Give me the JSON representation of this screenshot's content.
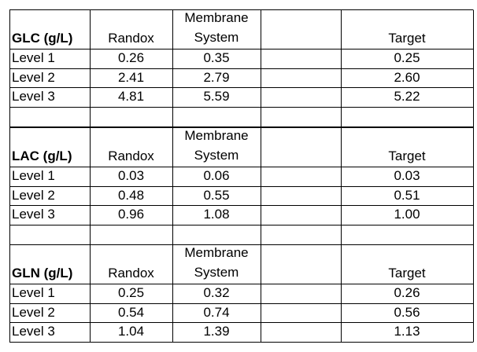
{
  "header": {
    "randox": "Randox",
    "membrane_line1": "Membrane",
    "membrane_line2": "System",
    "target": "Target"
  },
  "sections": [
    {
      "title": "GLC (g/L)",
      "rows": [
        {
          "level": "Level 1",
          "randox": "0.26",
          "membrane": "0.35",
          "target": "0.25"
        },
        {
          "level": "Level 2",
          "randox": "2.41",
          "membrane": "2.79",
          "target": "2.60"
        },
        {
          "level": "Level 3",
          "randox": "4.81",
          "membrane": "5.59",
          "target": "5.22"
        }
      ]
    },
    {
      "title": "LAC (g/L)",
      "rows": [
        {
          "level": "Level 1",
          "randox": "0.03",
          "membrane": "0.06",
          "target": "0.03"
        },
        {
          "level": "Level 2",
          "randox": "0.48",
          "membrane": "0.55",
          "target": "0.51"
        },
        {
          "level": "Level 3",
          "randox": "0.96",
          "membrane": "1.08",
          "target": "1.00"
        }
      ]
    },
    {
      "title": "GLN (g/L)",
      "rows": [
        {
          "level": "Level 1",
          "randox": "0.25",
          "membrane": "0.32",
          "target": "0.26"
        },
        {
          "level": "Level 2",
          "randox": "0.54",
          "membrane": "0.74",
          "target": "0.56"
        },
        {
          "level": "Level 3",
          "randox": "1.04",
          "membrane": "1.39",
          "target": "1.13"
        }
      ]
    }
  ]
}
